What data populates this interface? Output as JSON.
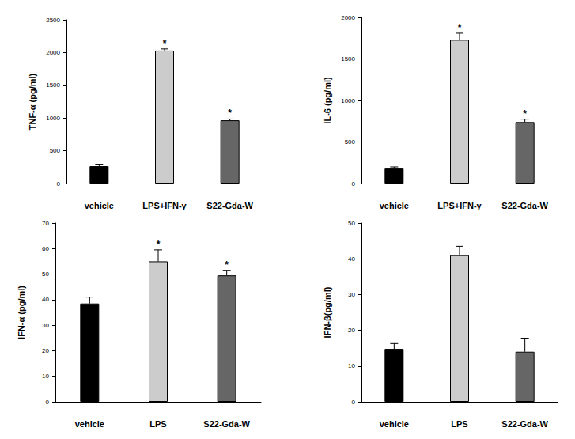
{
  "chart_data": [
    {
      "type": "bar",
      "y_label": "TNF-α (pg/ml)",
      "categories": [
        "vehicle",
        "LPS+IFN-γ",
        "S22-Gda-W"
      ],
      "values": [
        265,
        2030,
        965
      ],
      "errors": [
        30,
        25,
        20
      ],
      "annotations": [
        null,
        "*",
        "*"
      ],
      "colors": [
        "#000000",
        "#cccccc",
        "#666666"
      ],
      "ylim": [
        0,
        2500
      ],
      "yticks": [
        0,
        500,
        1000,
        1500,
        2000,
        2500
      ],
      "grid": false
    },
    {
      "type": "bar",
      "y_label": "IL-6 (pg/ml)",
      "categories": [
        "vehicle",
        "LPS+IFN-γ",
        "S22-Gda-W"
      ],
      "values": [
        180,
        1730,
        740
      ],
      "errors": [
        20,
        80,
        35
      ],
      "annotations": [
        null,
        "*",
        "*"
      ],
      "colors": [
        "#000000",
        "#cccccc",
        "#666666"
      ],
      "ylim": [
        0,
        2000
      ],
      "yticks": [
        0,
        500,
        1000,
        1500,
        2000
      ],
      "grid": false
    },
    {
      "type": "bar",
      "y_label": "IFN-α (pg/ml)",
      "categories": [
        "vehicle",
        "LPS",
        "S22-Gda-W"
      ],
      "values": [
        38.5,
        55,
        49.5
      ],
      "errors": [
        2.5,
        4.5,
        2
      ],
      "annotations": [
        null,
        "*",
        "*"
      ],
      "colors": [
        "#000000",
        "#cccccc",
        "#666666"
      ],
      "ylim": [
        0,
        70
      ],
      "yticks": [
        0,
        10,
        20,
        30,
        40,
        50,
        60,
        70
      ],
      "grid": false
    },
    {
      "type": "bar",
      "y_label": "IFN-β(pg/ml)",
      "categories": [
        "vehicle",
        "LPS",
        "S22-Gda-W"
      ],
      "values": [
        14.8,
        41,
        14
      ],
      "errors": [
        1.5,
        2.5,
        3.8
      ],
      "annotations": [
        null,
        null,
        null
      ],
      "colors": [
        "#000000",
        "#cccccc",
        "#666666"
      ],
      "ylim": [
        0,
        50
      ],
      "yticks": [
        0,
        10,
        20,
        30,
        40,
        50
      ],
      "grid": false
    }
  ]
}
